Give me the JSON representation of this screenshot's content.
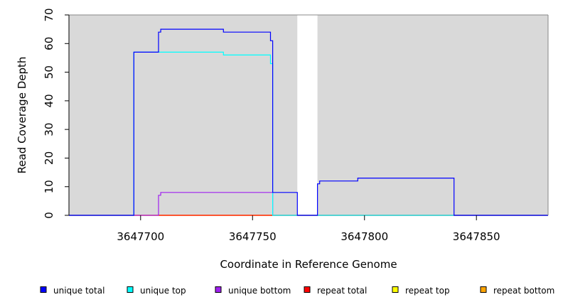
{
  "chart_data": {
    "type": "line",
    "title": "",
    "xlabel": "Coordinate in Reference Genome",
    "ylabel": "Read Coverage Depth",
    "xlim": [
      3647668,
      3647882
    ],
    "ylim": [
      0,
      70
    ],
    "x_ticks": [
      3647700,
      3647750,
      3647800,
      3647850
    ],
    "x_tick_labels": [
      "3647700",
      "3647750",
      "3647800",
      "3647850"
    ],
    "y_ticks": [
      0,
      10,
      20,
      30,
      40,
      50,
      60,
      70
    ],
    "y_tick_labels": [
      "0",
      "10",
      "20",
      "30",
      "40",
      "50",
      "60",
      "70"
    ],
    "background_color": "#d9d9d9",
    "gap_region": [
      3647770,
      3647779
    ],
    "gap_color": "#ffffff",
    "step": true,
    "series": [
      {
        "name": "unique total",
        "color": "#0000ff",
        "points": [
          [
            3647668,
            0
          ],
          [
            3647697,
            0
          ],
          [
            3647697,
            57
          ],
          [
            3647708,
            57
          ],
          [
            3647708,
            64
          ],
          [
            3647709,
            64
          ],
          [
            3647709,
            65
          ],
          [
            3647737,
            65
          ],
          [
            3647737,
            64
          ],
          [
            3647758,
            64
          ],
          [
            3647758,
            61
          ],
          [
            3647759,
            61
          ],
          [
            3647759,
            8
          ],
          [
            3647770,
            8
          ],
          [
            3647770,
            0
          ],
          [
            3647779,
            0
          ],
          [
            3647779,
            11
          ],
          [
            3647780,
            11
          ],
          [
            3647780,
            12
          ],
          [
            3647797,
            12
          ],
          [
            3647797,
            13
          ],
          [
            3647840,
            13
          ],
          [
            3647840,
            0
          ],
          [
            3647882,
            0
          ]
        ]
      },
      {
        "name": "unique top",
        "color": "#00ffff",
        "points": [
          [
            3647668,
            0
          ],
          [
            3647697,
            0
          ],
          [
            3647697,
            57
          ],
          [
            3647737,
            57
          ],
          [
            3647737,
            56
          ],
          [
            3647758,
            56
          ],
          [
            3647758,
            53
          ],
          [
            3647759,
            53
          ],
          [
            3647759,
            0
          ],
          [
            3647882,
            0
          ]
        ]
      },
      {
        "name": "unique bottom",
        "color": "#a020f0",
        "points": [
          [
            3647668,
            0
          ],
          [
            3647708,
            0
          ],
          [
            3647708,
            7
          ],
          [
            3647709,
            7
          ],
          [
            3647709,
            8
          ],
          [
            3647759,
            8
          ],
          [
            3647759,
            0
          ],
          [
            3647882,
            0
          ]
        ]
      },
      {
        "name": "repeat total",
        "color": "#ff0000",
        "points": [
          [
            3647668,
            0
          ],
          [
            3647882,
            0
          ]
        ]
      },
      {
        "name": "repeat top",
        "color": "#ffff00",
        "points": [
          [
            3647668,
            0
          ],
          [
            3647882,
            0
          ]
        ]
      },
      {
        "name": "repeat bottom",
        "color": "#ffa500",
        "points": [
          [
            3647668,
            0
          ],
          [
            3647882,
            0
          ]
        ]
      }
    ],
    "legend": {
      "placement": "bottom",
      "entries": [
        "unique total",
        "unique top",
        "unique bottom",
        "repeat total",
        "repeat top",
        "repeat bottom"
      ]
    }
  }
}
